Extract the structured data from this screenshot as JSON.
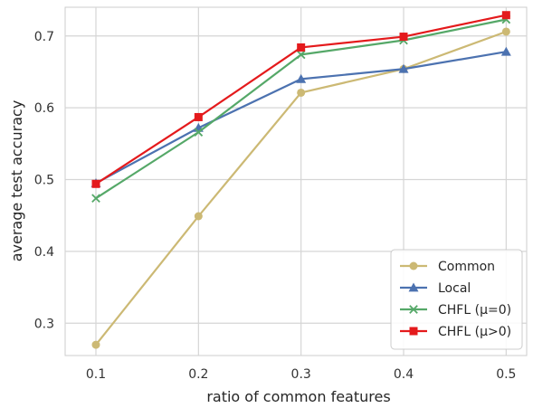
{
  "chart_data": {
    "type": "line",
    "title": "",
    "xlabel": "ratio of common features",
    "ylabel": "average test accuracy",
    "x": [
      0.1,
      0.2,
      0.3,
      0.4,
      0.5
    ],
    "x_tick_labels": [
      "0.1",
      "0.2",
      "0.3",
      "0.4",
      "0.5"
    ],
    "y_ticks": [
      0.3,
      0.4,
      0.5,
      0.6,
      0.7
    ],
    "y_tick_labels": [
      "0.3",
      "0.4",
      "0.5",
      "0.6",
      "0.7"
    ],
    "xlim": [
      0.07,
      0.52
    ],
    "ylim": [
      0.255,
      0.74
    ],
    "grid": true,
    "legend_position": "lower-right",
    "series": [
      {
        "name": "Common",
        "values": [
          0.27,
          0.449,
          0.621,
          0.654,
          0.706
        ],
        "color": "#ccb974",
        "marker": "circle"
      },
      {
        "name": "Local",
        "values": [
          0.495,
          0.572,
          0.64,
          0.654,
          0.678
        ],
        "color": "#4c72b0",
        "marker": "triangle"
      },
      {
        "name": "CHFL (μ=0)",
        "values": [
          0.474,
          0.566,
          0.674,
          0.694,
          0.723
        ],
        "color": "#55a868",
        "marker": "x"
      },
      {
        "name": "CHFL (μ>0)",
        "values": [
          0.494,
          0.587,
          0.684,
          0.699,
          0.729
        ],
        "color": "#e41a1c",
        "marker": "square"
      }
    ]
  }
}
